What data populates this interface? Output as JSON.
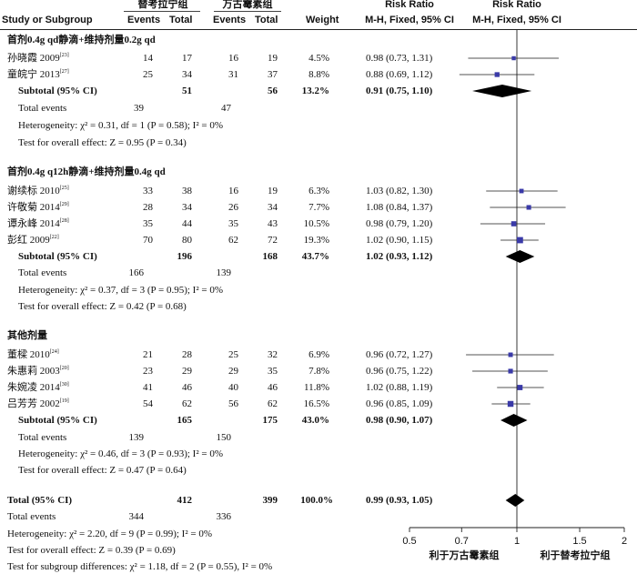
{
  "chart_data": {
    "type": "forest",
    "headers": {
      "study": "Study or Subgroup",
      "group1": "替考拉宁组",
      "group2": "万古霉素组",
      "events": "Events",
      "total": "Total",
      "weight": "Weight",
      "risk_ratio": "Risk Ratio",
      "method_left": "M-H, Fixed, 95% CI",
      "method_right": "M-H, Fixed, 95% CI"
    },
    "subgroups": [
      {
        "title": "首剂0.4g qd静滴+维持剂量0.2g qd",
        "studies": [
          {
            "name": "孙晓霞 2009",
            "ref": "[23]",
            "e1": "14",
            "n1": "17",
            "e2": "16",
            "n2": "19",
            "weight": "4.5%",
            "ci": "0.98 (0.73, 1.31)",
            "rr": 0.98,
            "lo": 0.73,
            "hi": 1.31
          },
          {
            "name": "童皖宁 2013",
            "ref": "[27]",
            "e1": "25",
            "n1": "34",
            "e2": "31",
            "n2": "37",
            "weight": "8.8%",
            "ci": "0.88 (0.69, 1.12)",
            "rr": 0.88,
            "lo": 0.69,
            "hi": 1.12
          }
        ],
        "subtotal": {
          "label": "Subtotal (95% CI)",
          "n1": "51",
          "n2": "56",
          "weight": "13.2%",
          "ci": "0.91 (0.75, 1.10)",
          "rr": 0.91,
          "lo": 0.75,
          "hi": 1.1
        },
        "total_events": {
          "label": "Total events",
          "e1": "39",
          "e2": "47"
        },
        "heterogeneity": "Heterogeneity: χ² = 0.31, df = 1 (P = 0.58); I² = 0%",
        "overall": "Test for overall effect: Z = 0.95 (P = 0.34)"
      },
      {
        "title": "首剂0.4g q12h静滴+维持剂量0.4g qd",
        "studies": [
          {
            "name": "谢续标 2010",
            "ref": "[25]",
            "e1": "33",
            "n1": "38",
            "e2": "16",
            "n2": "19",
            "weight": "6.3%",
            "ci": "1.03 (0.82, 1.30)",
            "rr": 1.03,
            "lo": 0.82,
            "hi": 1.3
          },
          {
            "name": "许敬菊 2014",
            "ref": "[29]",
            "e1": "28",
            "n1": "34",
            "e2": "26",
            "n2": "34",
            "weight": "7.7%",
            "ci": "1.08 (0.84, 1.37)",
            "rr": 1.08,
            "lo": 0.84,
            "hi": 1.37
          },
          {
            "name": "谭永峰 2014",
            "ref": "[28]",
            "e1": "35",
            "n1": "44",
            "e2": "35",
            "n2": "43",
            "weight": "10.5%",
            "ci": "0.98 (0.79, 1.20)",
            "rr": 0.98,
            "lo": 0.79,
            "hi": 1.2
          },
          {
            "name": "彭红 2009",
            "ref": "[22]",
            "e1": "70",
            "n1": "80",
            "e2": "62",
            "n2": "72",
            "weight": "19.3%",
            "ci": "1.02 (0.90, 1.15)",
            "rr": 1.02,
            "lo": 0.9,
            "hi": 1.15
          }
        ],
        "subtotal": {
          "label": "Subtotal (95% CI)",
          "n1": "196",
          "n2": "168",
          "weight": "43.7%",
          "ci": "1.02 (0.93, 1.12)",
          "rr": 1.02,
          "lo": 0.93,
          "hi": 1.12
        },
        "total_events": {
          "label": "Total events",
          "e1": "166",
          "e2": "139"
        },
        "heterogeneity": "Heterogeneity: χ² = 0.37, df = 3 (P = 0.95); I² = 0%",
        "overall": "Test for overall effect: Z = 0.42 (P = 0.68)"
      },
      {
        "title": "其他剂量",
        "studies": [
          {
            "name": "董樑 2010",
            "ref": "[24]",
            "e1": "21",
            "n1": "28",
            "e2": "25",
            "n2": "32",
            "weight": "6.9%",
            "ci": "0.96 (0.72, 1.27)",
            "rr": 0.96,
            "lo": 0.72,
            "hi": 1.27
          },
          {
            "name": "朱惠莉 2003",
            "ref": "[20]",
            "e1": "23",
            "n1": "29",
            "e2": "29",
            "n2": "35",
            "weight": "7.8%",
            "ci": "0.96 (0.75, 1.22)",
            "rr": 0.96,
            "lo": 0.75,
            "hi": 1.22
          },
          {
            "name": "朱婉凌 2014",
            "ref": "[30]",
            "e1": "41",
            "n1": "46",
            "e2": "40",
            "n2": "46",
            "weight": "11.8%",
            "ci": "1.02 (0.88, 1.19)",
            "rr": 1.02,
            "lo": 0.88,
            "hi": 1.19
          },
          {
            "name": "吕芳芳 2002",
            "ref": "[19]",
            "e1": "54",
            "n1": "62",
            "e2": "56",
            "n2": "62",
            "weight": "16.5%",
            "ci": "0.96 (0.85, 1.09)",
            "rr": 0.96,
            "lo": 0.85,
            "hi": 1.09
          }
        ],
        "subtotal": {
          "label": "Subtotal (95% CI)",
          "n1": "165",
          "n2": "175",
          "weight": "43.0%",
          "ci": "0.98 (0.90, 1.07)",
          "rr": 0.98,
          "lo": 0.9,
          "hi": 1.07
        },
        "total_events": {
          "label": "Total events",
          "e1": "139",
          "e2": "150"
        },
        "heterogeneity": "Heterogeneity: χ² = 0.46, df = 3 (P = 0.93); I² = 0%",
        "overall": "Test for overall effect: Z = 0.47 (P = 0.64)"
      }
    ],
    "total": {
      "label": "Total (95% CI)",
      "n1": "412",
      "n2": "399",
      "weight": "100.0%",
      "ci": "0.99 (0.93, 1.05)",
      "rr": 0.99,
      "lo": 0.93,
      "hi": 1.05
    },
    "total_events": {
      "label": "Total events",
      "e1": "344",
      "e2": "336"
    },
    "heterogeneity": "Heterogeneity: χ² = 2.20, df = 9 (P = 0.99); I² = 0%",
    "overall": "Test for overall effect: Z = 0.39 (P = 0.69)",
    "subgroup_diff": "Test for subgroup differences: χ² = 1.18, df = 2 (P = 0.55), I² = 0%",
    "axis": {
      "ticks": [
        0.5,
        0.7,
        1,
        1.5,
        2
      ],
      "tick_labels": [
        "0.5",
        "0.7",
        "1",
        "1.5",
        "2"
      ],
      "xlim": [
        0.5,
        2
      ],
      "scale": "log",
      "reference": 1,
      "favours_left": "利于万古霉素组",
      "favours_right": "利于替考拉宁组"
    },
    "colors": {
      "study_marker": "#3a3aa8",
      "diamond": "#000000",
      "text": "#111111"
    }
  }
}
